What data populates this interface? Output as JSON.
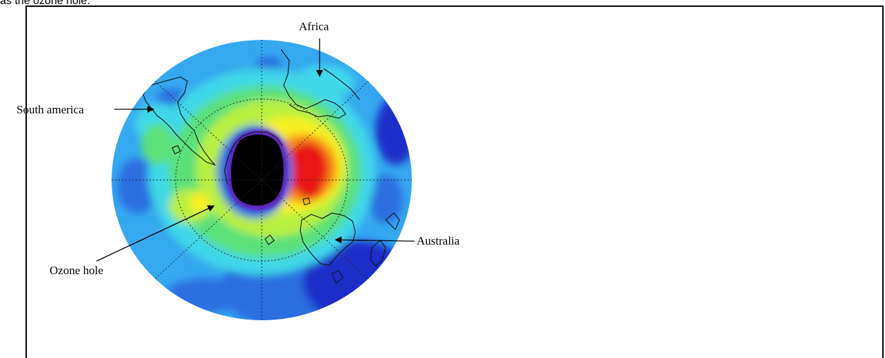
{
  "caption_fragment": "as the ozone hole.",
  "labels": {
    "africa": "Africa",
    "south_america": "South america",
    "australia": "Australia",
    "ozone_hole": "Ozone hole"
  },
  "colors": {
    "deep_blue": "#1a2fc8",
    "blue": "#2a6ee0",
    "light_blue": "#35a8f0",
    "cyan": "#3fd8e8",
    "green": "#5ce07a",
    "yellow_green": "#b8f040",
    "yellow": "#f8f020",
    "orange": "#f89018",
    "red": "#e81818",
    "purple": "#6020c0",
    "hole": "#000000"
  }
}
